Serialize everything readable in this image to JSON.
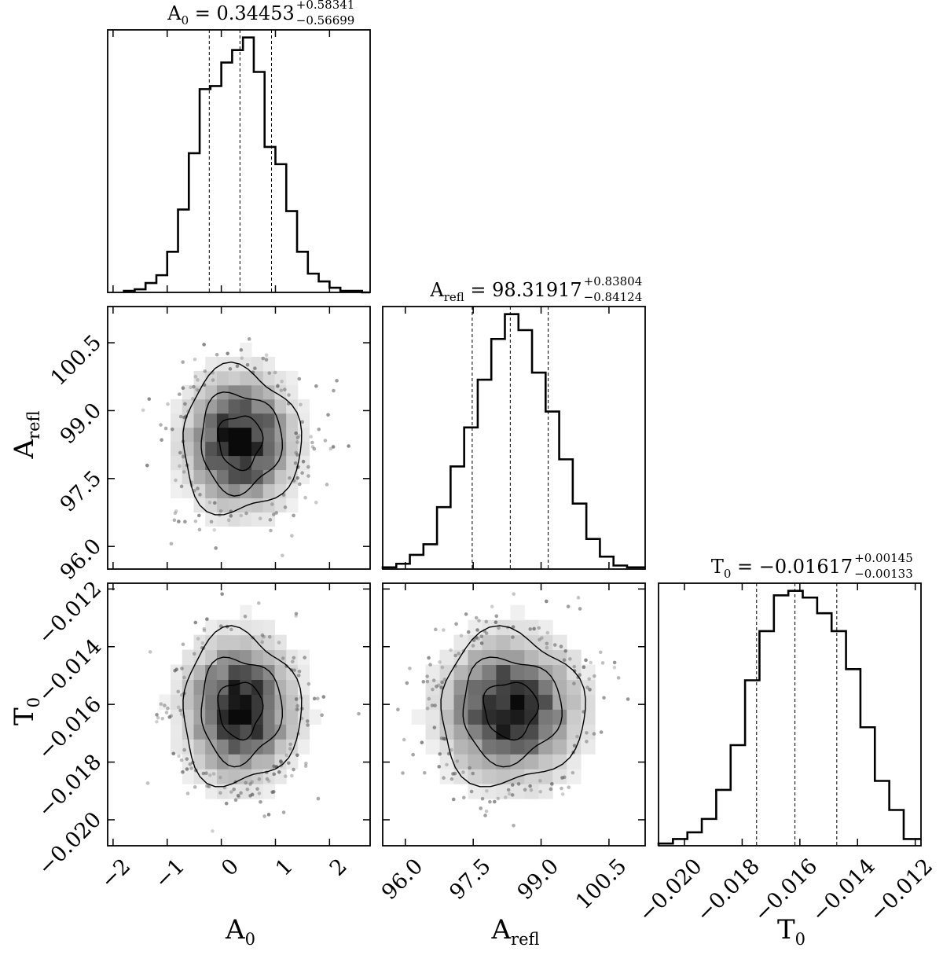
{
  "chart_data": {
    "type": "corner",
    "parameters": [
      {
        "id": "A0",
        "label": "A",
        "label_sub": "0",
        "title": {
          "prefix": "A",
          "prefix_sub": "0",
          "median": "0.34453",
          "plus": "+0.58341",
          "minus": "−0.56699"
        },
        "range": [
          -2.1,
          2.75
        ],
        "ticks": [
          -2,
          -1,
          0,
          1,
          2
        ],
        "tick_labels": [
          "−2",
          "−1",
          "0",
          "1",
          "2"
        ],
        "quantiles": [
          -0.22246,
          0.34453,
          0.92794
        ],
        "hist_bin_edges": [
          -1.8,
          -1.6,
          -1.4,
          -1.2,
          -1.0,
          -0.8,
          -0.6,
          -0.4,
          -0.2,
          0.0,
          0.2,
          0.4,
          0.6,
          0.8,
          1.0,
          1.2,
          1.4,
          1.6,
          1.8,
          2.0,
          2.2,
          2.4,
          2.6,
          2.75
        ],
        "hist_counts": [
          1,
          2,
          6,
          11,
          26,
          53,
          89,
          130,
          132,
          147,
          155,
          163,
          141,
          93,
          82,
          52,
          26,
          12,
          7,
          3,
          1,
          1,
          0
        ]
      },
      {
        "id": "Arefl",
        "label": "A",
        "label_sub": "refl",
        "title": {
          "prefix": "A",
          "prefix_sub": "refl",
          "median": "98.31917",
          "plus": "+0.83804",
          "minus": "−0.84124"
        },
        "range": [
          95.5,
          101.3
        ],
        "ticks": [
          96.0,
          97.5,
          99.0,
          100.5
        ],
        "tick_labels": [
          "96.0",
          "97.5",
          "99.0",
          "100.5"
        ],
        "quantiles": [
          97.47793,
          98.31917,
          99.15721
        ],
        "hist_bin_edges": [
          95.5,
          95.8,
          96.1,
          96.4,
          96.7,
          97.0,
          97.3,
          97.6,
          97.9,
          98.2,
          98.5,
          98.8,
          99.1,
          99.4,
          99.7,
          100.0,
          100.3,
          100.6,
          100.9,
          101.3
        ],
        "hist_counts": [
          1,
          3,
          8,
          14,
          35,
          58,
          80,
          107,
          130,
          144,
          135,
          111,
          89,
          62,
          37,
          17,
          7,
          2,
          1
        ]
      },
      {
        "id": "T0",
        "label": "T",
        "label_sub": "0",
        "title": {
          "prefix": "T",
          "prefix_sub": "0",
          "median": "−0.01617",
          "plus": "+0.00145",
          "minus": "−0.00133"
        },
        "range": [
          -0.0209,
          -0.0118
        ],
        "ticks": [
          -0.02,
          -0.018,
          -0.016,
          -0.014,
          -0.012
        ],
        "tick_labels": [
          "−0.020",
          "−0.018",
          "−0.016",
          "−0.014",
          "−0.012"
        ],
        "quantiles": [
          -0.0175,
          -0.01617,
          -0.01472
        ],
        "hist_bin_edges": [
          -0.0209,
          -0.0204,
          -0.0199,
          -0.0194,
          -0.0189,
          -0.0184,
          -0.0179,
          -0.0174,
          -0.0169,
          -0.0164,
          -0.0159,
          -0.0154,
          -0.0149,
          -0.0144,
          -0.0139,
          -0.0134,
          -0.0129,
          -0.0124,
          -0.0118
        ],
        "hist_counts": [
          1,
          3,
          6,
          12,
          25,
          45,
          74,
          96,
          112,
          114,
          111,
          104,
          96,
          79,
          53,
          29,
          16,
          3
        ]
      }
    ],
    "grid": false,
    "legend": "none",
    "colors": {
      "ink": "#000000",
      "scatter_points": "#555555",
      "background": "#ffffff"
    }
  }
}
